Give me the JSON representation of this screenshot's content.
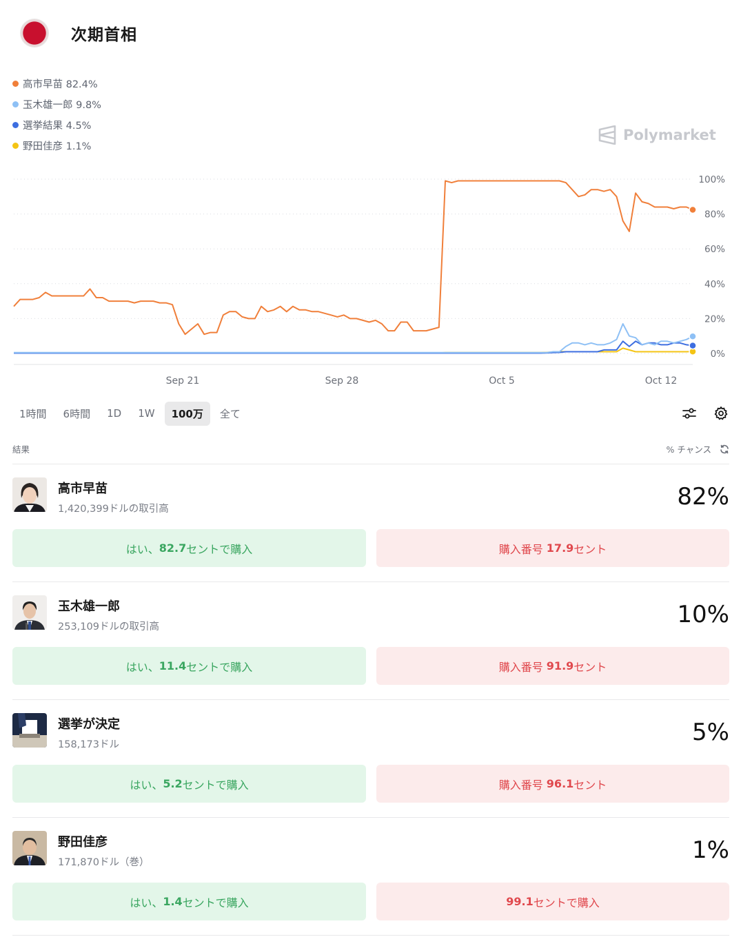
{
  "header": {
    "title": "次期首相"
  },
  "legend": [
    {
      "label": "高市早苗 82.4%",
      "color": "#f07f3a"
    },
    {
      "label": "玉木雄一郎 9.8%",
      "color": "#8ec0f5"
    },
    {
      "label": "選挙結果 4.5%",
      "color": "#3d6ee0"
    },
    {
      "label": "野田佳彦 1.1%",
      "color": "#f4c414"
    }
  ],
  "watermark": "Polymarket",
  "chart_data": {
    "type": "line",
    "x_ticks": [
      "Sep 21",
      "Sep 28",
      "Oct 5",
      "Oct 12"
    ],
    "y_ticks": [
      "100%",
      "80%",
      "60%",
      "40%",
      "20%",
      "0%"
    ],
    "ylim": [
      0,
      100
    ],
    "grid": true,
    "series": [
      {
        "name": "高市早苗",
        "color": "#f07f3a",
        "values": [
          27,
          31,
          31,
          31,
          32,
          35,
          33,
          33,
          33,
          33,
          33,
          33,
          37,
          32,
          32,
          30,
          30,
          30,
          30,
          29,
          30,
          30,
          30,
          29,
          29,
          28,
          17,
          11,
          14,
          17,
          11,
          12,
          12,
          22,
          24,
          24,
          21,
          20,
          20,
          27,
          24,
          25,
          27,
          24,
          27,
          25,
          25,
          24,
          24,
          23,
          22,
          21,
          22,
          20,
          20,
          19,
          18,
          19,
          17,
          13,
          13,
          18,
          18,
          13,
          13,
          13,
          14,
          15,
          99,
          98,
          99,
          99,
          99,
          99,
          99,
          99,
          99,
          99,
          99,
          99,
          99,
          99,
          99,
          99,
          99,
          99,
          99,
          98,
          94,
          90,
          91,
          94,
          94,
          93,
          94,
          90,
          76,
          70,
          92,
          87,
          86,
          84,
          84,
          84,
          83,
          84,
          84,
          82.4
        ]
      },
      {
        "name": "玉木雄一郎",
        "color": "#8ec0f5",
        "values": [
          0.5,
          0.5,
          0.5,
          0.5,
          0.5,
          0.5,
          0.5,
          0.5,
          0.5,
          0.5,
          0.5,
          0.5,
          0.5,
          0.5,
          0.5,
          0.5,
          0.5,
          0.5,
          0.5,
          0.5,
          0.5,
          0.5,
          0.5,
          0.5,
          0.5,
          0.5,
          0.5,
          0.5,
          0.5,
          0.5,
          0.5,
          0.5,
          0.5,
          0.5,
          0.5,
          0.5,
          0.5,
          0.5,
          0.5,
          0.5,
          0.5,
          0.5,
          0.5,
          0.5,
          0.5,
          0.5,
          0.5,
          0.5,
          0.5,
          0.5,
          0.5,
          0.5,
          0.5,
          0.5,
          0.5,
          0.5,
          0.5,
          0.5,
          0.5,
          0.5,
          0.5,
          0.5,
          0.5,
          0.5,
          0.5,
          0.5,
          0.5,
          0.5,
          0.5,
          0.5,
          0.5,
          0.5,
          0.5,
          0.5,
          0.5,
          0.5,
          0.5,
          0.5,
          0.5,
          0.5,
          0.5,
          0.5,
          0.5,
          0.5,
          0.5,
          1,
          1,
          4,
          6,
          6,
          5,
          6,
          5,
          5,
          6,
          8,
          17,
          10,
          9,
          5,
          6,
          5,
          7,
          7,
          6,
          7,
          8,
          9.8
        ]
      },
      {
        "name": "選挙結果",
        "color": "#3d6ee0",
        "values": [
          0.2,
          0.2,
          0.2,
          0.2,
          0.2,
          0.2,
          0.2,
          0.2,
          0.2,
          0.2,
          0.2,
          0.2,
          0.2,
          0.2,
          0.2,
          0.2,
          0.2,
          0.2,
          0.2,
          0.2,
          0.2,
          0.2,
          0.2,
          0.2,
          0.2,
          0.2,
          0.2,
          0.2,
          0.2,
          0.2,
          0.2,
          0.2,
          0.2,
          0.2,
          0.2,
          0.2,
          0.2,
          0.2,
          0.2,
          0.2,
          0.2,
          0.2,
          0.2,
          0.2,
          0.2,
          0.2,
          0.2,
          0.2,
          0.2,
          0.2,
          0.2,
          0.2,
          0.2,
          0.2,
          0.2,
          0.2,
          0.2,
          0.2,
          0.2,
          0.2,
          0.2,
          0.2,
          0.2,
          0.2,
          0.2,
          0.2,
          0.2,
          0.2,
          0.2,
          0.2,
          0.2,
          0.2,
          0.2,
          0.2,
          0.2,
          0.2,
          0.2,
          0.2,
          0.2,
          0.2,
          0.2,
          0.2,
          0.2,
          0.2,
          0.3,
          0.5,
          0.6,
          1,
          1,
          1,
          1,
          1,
          1,
          2,
          2,
          2,
          7,
          4,
          7,
          5,
          6,
          6,
          5,
          5,
          6,
          6,
          5,
          4.5
        ]
      },
      {
        "name": "野田佳彦",
        "color": "#f4c414",
        "values": [
          0.3,
          0.3,
          0.3,
          0.3,
          0.3,
          0.3,
          0.3,
          0.3,
          0.3,
          0.3,
          0.3,
          0.3,
          0.3,
          0.3,
          0.3,
          0.3,
          0.3,
          0.3,
          0.3,
          0.3,
          0.3,
          0.3,
          0.3,
          0.3,
          0.3,
          0.3,
          0.3,
          0.3,
          0.3,
          0.3,
          0.3,
          0.3,
          0.3,
          0.3,
          0.3,
          0.3,
          0.3,
          0.3,
          0.3,
          0.3,
          0.3,
          0.3,
          0.3,
          0.3,
          0.3,
          0.3,
          0.3,
          0.3,
          0.3,
          0.3,
          0.3,
          0.3,
          0.3,
          0.3,
          0.3,
          0.3,
          0.3,
          0.3,
          0.3,
          0.3,
          0.3,
          0.3,
          0.3,
          0.3,
          0.3,
          0.3,
          0.3,
          0.3,
          0.5,
          0.5,
          0.5,
          0.5,
          0.5,
          0.5,
          0.5,
          0.5,
          0.5,
          0.5,
          0.5,
          0.5,
          0.5,
          0.5,
          0.5,
          0.5,
          0.6,
          0.8,
          1,
          1,
          1,
          1,
          1,
          1,
          1,
          1,
          1,
          1,
          3,
          2,
          1,
          1,
          1,
          1,
          1,
          1,
          1,
          1,
          1,
          1.1
        ]
      }
    ]
  },
  "timeframes": [
    {
      "label": "1時間",
      "active": false
    },
    {
      "label": "6時間",
      "active": false
    },
    {
      "label": "1D",
      "active": false
    },
    {
      "label": "1W",
      "active": false
    },
    {
      "label": "100万",
      "active": true
    },
    {
      "label": "全て",
      "active": false
    }
  ],
  "results": {
    "header_left": "結果",
    "header_right": "% チャンス"
  },
  "candidates": [
    {
      "name": "高市早苗",
      "volume": "1,420,399ドルの取引高",
      "pct": "82%",
      "yes_pre": "はい、",
      "yes_price": "82.7",
      "yes_post": "セントで購入",
      "no_pre": "購入番号 ",
      "no_price": "17.9",
      "no_post": "セント"
    },
    {
      "name": "玉木雄一郎",
      "volume": "253,109ドルの取引高",
      "pct": "10%",
      "yes_pre": "はい、",
      "yes_price": "11.4",
      "yes_post": "セントで購入",
      "no_pre": "購入番号 ",
      "no_price": "91.9",
      "no_post": "セント"
    },
    {
      "name": "選挙が決定",
      "volume": "158,173ドル",
      "pct": "5%",
      "yes_pre": "はい、",
      "yes_price": "5.2",
      "yes_post": "セントで購入",
      "no_pre": "購入番号 ",
      "no_price": "96.1",
      "no_post": "セント"
    },
    {
      "name": "野田佳彦",
      "volume": "171,870ドル（巻）",
      "pct": "1%",
      "yes_pre": "はい、",
      "yes_price": "1.4",
      "yes_post": "セントで購入",
      "no_pre": "",
      "no_price": "99.1",
      "no_post": "セントで購入"
    }
  ]
}
